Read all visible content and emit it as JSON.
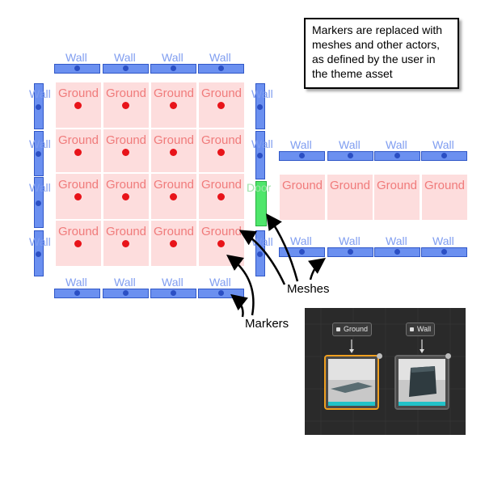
{
  "note": {
    "text": "Markers are replaced with meshes and other actors, as defined by the user in the theme asset"
  },
  "grid": {
    "ground_label": "Ground",
    "wall_label": "Wall",
    "door_label": "Door"
  },
  "callouts": {
    "meshes": "Meshes",
    "markers": "Markers"
  },
  "editor": {
    "ground_node": "Ground",
    "wall_node": "Wall"
  },
  "colors": {
    "ground": "#fddddd",
    "marker": "#e8141a",
    "wall": "#6b90f0",
    "door": "#4fe66b",
    "selected_border": "#f0a020"
  }
}
